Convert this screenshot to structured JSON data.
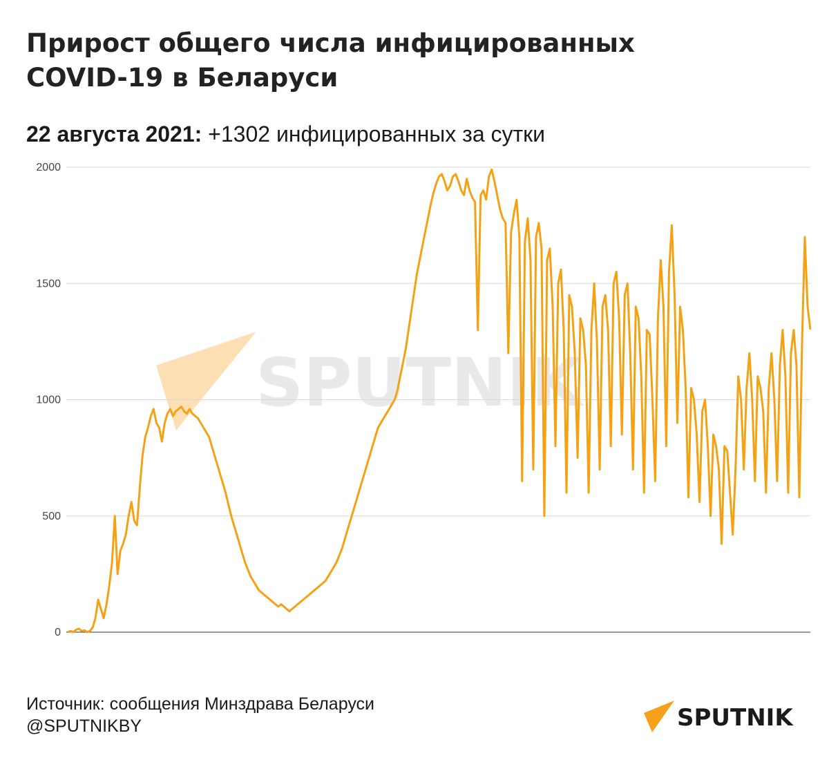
{
  "header": {
    "title_line1": "Прирост общего числа инфицированных",
    "title_line2": "COVID-19 в Беларуси",
    "subtitle_date": "22 августа 2021:",
    "subtitle_text": " +1302 инфицированных за сутки"
  },
  "footer": {
    "source": "Источник: сообщения Минздрава Беларуси",
    "handle": "@SPUTNIKBY"
  },
  "brand": {
    "logo_text": "SPUTNIK",
    "watermark_text": "SPUTNIK",
    "accent": "#f7a11a",
    "line_color": "#f4a214",
    "grid_color": "#d9d9d9",
    "axis_color": "#333333"
  },
  "chart_data": {
    "type": "line",
    "title": "Прирост общего числа инфицированных COVID-19 в Беларуси",
    "xlabel": "",
    "ylabel": "",
    "ylim": [
      0,
      2000
    ],
    "yticks": [
      0,
      500,
      1000,
      1500,
      2000
    ],
    "grid": true,
    "legend": "none",
    "series": [
      {
        "values": [
          0,
          5,
          0,
          10,
          15,
          5,
          8,
          0,
          5,
          20,
          60,
          140,
          100,
          60,
          120,
          200,
          300,
          500,
          250,
          350,
          380,
          420,
          500,
          560,
          480,
          460,
          620,
          760,
          840,
          880,
          930,
          960,
          900,
          880,
          820,
          900,
          940,
          960,
          930,
          950,
          960,
          970,
          950,
          940,
          960,
          940,
          930,
          920,
          900,
          880,
          860,
          840,
          800,
          760,
          720,
          680,
          640,
          600,
          550,
          500,
          460,
          420,
          380,
          340,
          300,
          270,
          240,
          220,
          200,
          180,
          170,
          160,
          150,
          140,
          130,
          120,
          110,
          120,
          110,
          100,
          90,
          100,
          110,
          120,
          130,
          140,
          150,
          160,
          170,
          180,
          190,
          200,
          210,
          220,
          240,
          260,
          280,
          300,
          330,
          360,
          400,
          440,
          480,
          520,
          560,
          600,
          640,
          680,
          720,
          760,
          800,
          840,
          880,
          900,
          920,
          940,
          960,
          980,
          1000,
          1040,
          1100,
          1160,
          1220,
          1300,
          1380,
          1460,
          1540,
          1600,
          1660,
          1720,
          1780,
          1840,
          1890,
          1930,
          1960,
          1970,
          1940,
          1900,
          1920,
          1960,
          1970,
          1940,
          1900,
          1880,
          1950,
          1900,
          1870,
          1850,
          1300,
          1880,
          1900,
          1860,
          1960,
          1990,
          1940,
          1880,
          1820,
          1780,
          1760,
          1200,
          1720,
          1800,
          1860,
          1700,
          650,
          1680,
          1780,
          1600,
          700,
          1700,
          1760,
          1650,
          500,
          1600,
          1650,
          1400,
          800,
          1500,
          1560,
          1300,
          600,
          1450,
          1400,
          1200,
          750,
          1350,
          1300,
          1150,
          600,
          1300,
          1500,
          1250,
          700,
          1400,
          1450,
          1300,
          800,
          1500,
          1550,
          1350,
          850,
          1450,
          1500,
          1200,
          700,
          1400,
          1350,
          1100,
          600,
          1300,
          1280,
          1000,
          650,
          1350,
          1600,
          1400,
          800,
          1550,
          1750,
          1450,
          900,
          1400,
          1300,
          1050,
          580,
          1050,
          1000,
          850,
          560,
          950,
          1000,
          800,
          500,
          850,
          800,
          700,
          380,
          800,
          780,
          600,
          420,
          700,
          1100,
          1000,
          700,
          1050,
          1200,
          1000,
          650,
          1100,
          1050,
          950,
          600,
          1050,
          1200,
          1000,
          650,
          1150,
          1300,
          1100,
          600,
          1200,
          1300,
          1150,
          580,
          1250,
          1700,
          1400,
          1302
        ]
      }
    ]
  }
}
